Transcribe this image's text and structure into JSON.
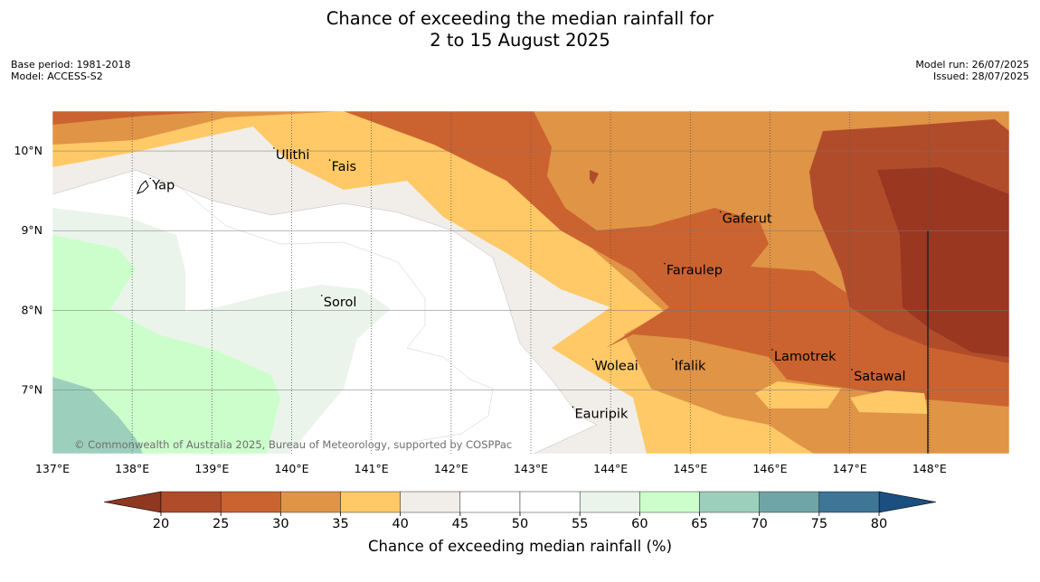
{
  "title": {
    "line1": "Chance of exceeding the median rainfall for",
    "line2": "2 to 15 August 2025"
  },
  "meta_left": {
    "base_period": "Base period: 1981-2018",
    "model": "Model: ACCESS-S2"
  },
  "meta_right": {
    "model_run": "Model run: 26/07/2025",
    "issued": "Issued: 28/07/2025"
  },
  "map": {
    "lon_range": [
      137,
      149
    ],
    "lat_range": [
      6.2,
      10.5
    ],
    "x_ticks": [
      "137°E",
      "138°E",
      "139°E",
      "140°E",
      "141°E",
      "142°E",
      "143°E",
      "144°E",
      "145°E",
      "146°E",
      "147°E",
      "148°E"
    ],
    "y_ticks": [
      "10°N",
      "9°N",
      "8°N",
      "7°N"
    ],
    "places": [
      {
        "name": "Ulithi",
        "lon": 139.8,
        "lat": 9.9
      },
      {
        "name": "Fais",
        "lon": 140.5,
        "lat": 9.75
      },
      {
        "name": "Yap",
        "lon": 138.25,
        "lat": 9.52
      },
      {
        "name": "Gaferut",
        "lon": 145.4,
        "lat": 9.1
      },
      {
        "name": "Faraulep",
        "lon": 144.7,
        "lat": 8.45
      },
      {
        "name": "Sorol",
        "lon": 140.4,
        "lat": 8.05
      },
      {
        "name": "Lamotrek",
        "lon": 146.05,
        "lat": 7.37
      },
      {
        "name": "Woleai",
        "lon": 143.8,
        "lat": 7.25
      },
      {
        "name": "Ifalik",
        "lon": 144.8,
        "lat": 7.25
      },
      {
        "name": "Satawal",
        "lon": 147.05,
        "lat": 7.12
      },
      {
        "name": "Eauripik",
        "lon": 143.55,
        "lat": 6.65
      }
    ],
    "copyright": "© Commonwealth of Australia 2025, Bureau of Meteorology, supported by COSPPac"
  },
  "colorbar": {
    "title": "Chance of exceeding median rainfall (%)",
    "ticks": [
      "20",
      "25",
      "30",
      "35",
      "40",
      "45",
      "50",
      "55",
      "60",
      "65",
      "70",
      "75",
      "80"
    ],
    "under_color": "#8f3720",
    "over_color": "#1b4f80",
    "bin_colors": [
      "#b14c2b",
      "#cb6330",
      "#e09446",
      "#fec966",
      "#f1ede8",
      "#ffffff",
      "#ffffff",
      "#ebf4ea",
      "#ccfecb",
      "#9dd0bc",
      "#6fa5a6",
      "#3f7597"
    ]
  }
}
